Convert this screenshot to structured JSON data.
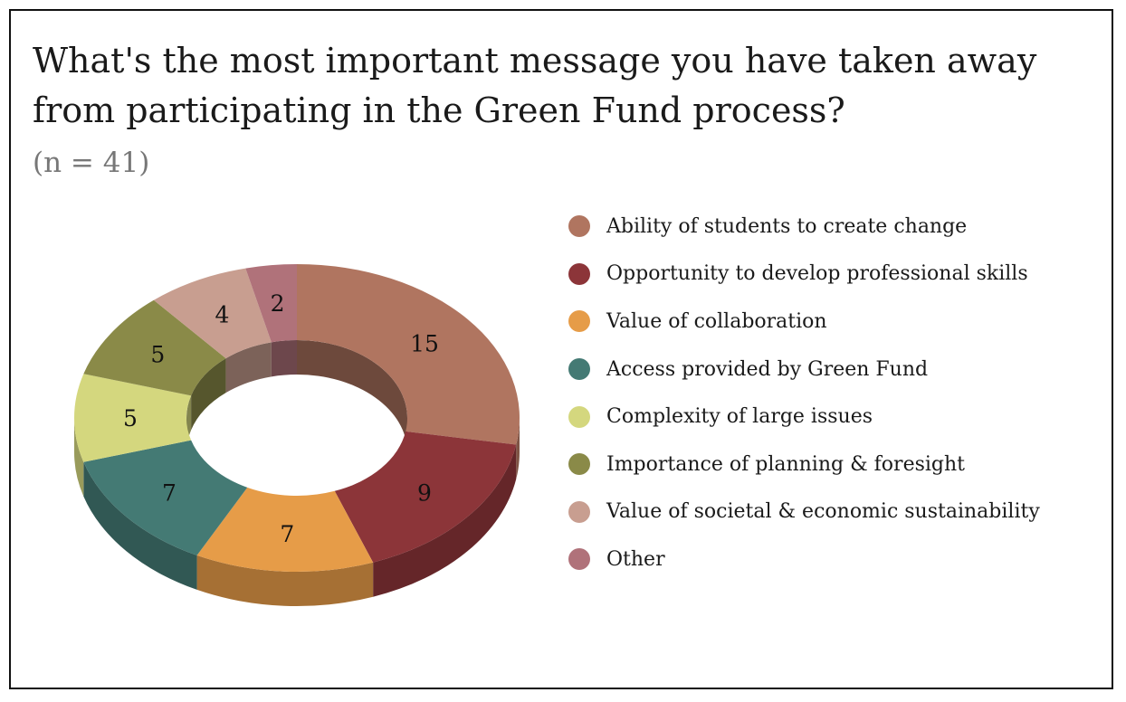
{
  "chart_data": {
    "type": "pie",
    "style": "3d-donut",
    "title": "What's the most important message you have taken away from participating in the Green Fund process?",
    "subtitle": "(n = 41)",
    "legend_position": "right",
    "categories": [
      "Ability of students to create change",
      "Opportunity to develop professional skills",
      "Value of collaboration",
      "Access provided by Green Fund",
      "Complexity of large issues",
      "Importance of planning & foresight",
      "Value of societal & economic sustainability",
      "Other"
    ],
    "values": [
      15,
      9,
      7,
      7,
      5,
      5,
      4,
      2
    ],
    "colors": [
      "#b07560",
      "#8c3539",
      "#e69c48",
      "#447a74",
      "#d4d77e",
      "#8a8a48",
      "#c89e90",
      "#b0727a"
    ]
  }
}
